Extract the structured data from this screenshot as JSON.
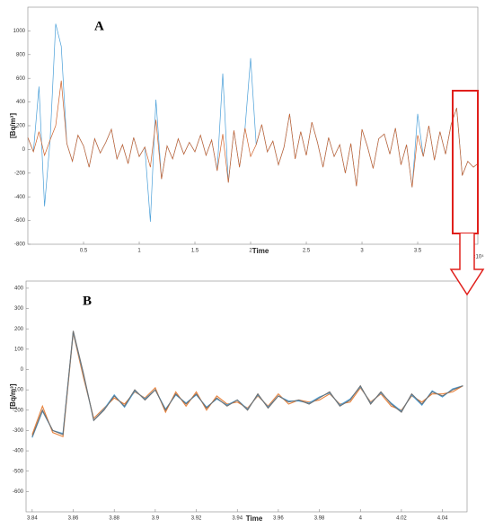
{
  "chart_data": [
    {
      "type": "line",
      "title": "A",
      "xlabel": "Time",
      "ylabel": "[Bq/m³]",
      "x_exponent": "×10⁴",
      "xlim": [
        0,
        4.04
      ],
      "ylim": [
        -800,
        1200
      ],
      "xticks": [
        0.5,
        1,
        1.5,
        2,
        2.5,
        3,
        3.5,
        4
      ],
      "yticks": [
        -800,
        -600,
        -400,
        -200,
        0,
        200,
        400,
        600,
        800,
        1000
      ],
      "x": [
        0,
        0.05,
        0.1,
        0.15,
        0.2,
        0.25,
        0.3,
        0.35,
        0.4,
        0.45,
        0.5,
        0.55,
        0.6,
        0.65,
        0.7,
        0.75,
        0.8,
        0.85,
        0.9,
        0.95,
        1,
        1.05,
        1.1,
        1.15,
        1.2,
        1.25,
        1.3,
        1.35,
        1.4,
        1.45,
        1.5,
        1.55,
        1.6,
        1.65,
        1.7,
        1.75,
        1.8,
        1.85,
        1.9,
        1.95,
        2,
        2.05,
        2.1,
        2.15,
        2.2,
        2.25,
        2.3,
        2.35,
        2.4,
        2.45,
        2.5,
        2.55,
        2.6,
        2.65,
        2.7,
        2.75,
        2.8,
        2.85,
        2.9,
        2.95,
        3,
        3.05,
        3.1,
        3.15,
        3.2,
        3.25,
        3.3,
        3.35,
        3.4,
        3.45,
        3.5,
        3.55,
        3.6,
        3.65,
        3.7,
        3.75,
        3.8,
        3.85,
        3.9,
        3.95,
        4,
        4.04
      ],
      "series": [
        {
          "color": "#4a9fd8",
          "values": [
            100,
            -20,
            530,
            -480,
            80,
            1060,
            870,
            50,
            -100,
            120,
            30,
            -150,
            90,
            -30,
            60,
            170,
            -80,
            40,
            -120,
            100,
            -60,
            20,
            -610,
            420,
            -250,
            30,
            -80,
            90,
            -40,
            60,
            -20,
            120,
            -50,
            80,
            -180,
            640,
            -280,
            160,
            -150,
            180,
            770,
            40,
            210,
            -20,
            70,
            -130,
            20,
            300,
            -80,
            150,
            -50,
            230,
            60,
            -150,
            100,
            -60,
            40,
            -200,
            50,
            -310,
            170,
            20,
            -160,
            90,
            130,
            -40,
            180,
            -130,
            40,
            -320,
            300,
            -60,
            200,
            -90,
            150,
            -40,
            210,
            350,
            -220,
            -100,
            -150,
            -120
          ]
        },
        {
          "color": "#d0622a",
          "values": [
            100,
            -20,
            150,
            -50,
            80,
            200,
            580,
            50,
            -100,
            120,
            30,
            -150,
            90,
            -30,
            60,
            170,
            -80,
            40,
            -120,
            100,
            -60,
            20,
            -150,
            250,
            -250,
            30,
            -80,
            90,
            -40,
            60,
            -20,
            120,
            -50,
            80,
            -180,
            130,
            -280,
            160,
            -150,
            180,
            -60,
            40,
            210,
            -20,
            70,
            -130,
            20,
            300,
            -80,
            150,
            -50,
            230,
            60,
            -150,
            100,
            -60,
            40,
            -200,
            50,
            -310,
            170,
            20,
            -160,
            90,
            130,
            -40,
            180,
            -130,
            40,
            -320,
            120,
            -60,
            200,
            -90,
            150,
            -40,
            210,
            350,
            -220,
            -100,
            -150,
            -120
          ]
        }
      ]
    },
    {
      "type": "line",
      "title": "B",
      "xlabel": "Time",
      "ylabel": "[Bq/m³]",
      "xlim": [
        3.837,
        4.052
      ],
      "ylim": [
        -700,
        435
      ],
      "xticks": [
        3.84,
        3.86,
        3.88,
        3.9,
        3.92,
        3.94,
        3.96,
        3.98,
        4,
        4.02,
        4.04
      ],
      "yticks": [
        -600,
        -500,
        -400,
        -300,
        -200,
        -100,
        0,
        100,
        200,
        300,
        400
      ],
      "x": [
        3.84,
        3.845,
        3.85,
        3.855,
        3.86,
        3.865,
        3.87,
        3.875,
        3.88,
        3.885,
        3.89,
        3.895,
        3.9,
        3.905,
        3.91,
        3.915,
        3.92,
        3.925,
        3.93,
        3.935,
        3.94,
        3.945,
        3.95,
        3.955,
        3.96,
        3.965,
        3.97,
        3.975,
        3.98,
        3.985,
        3.99,
        3.995,
        4,
        4.005,
        4.01,
        4.015,
        4.02,
        4.025,
        4.03,
        4.035,
        4.04,
        4.045,
        4.05
      ],
      "series": [
        {
          "color": "#e8823c",
          "values": [
            -320,
            -180,
            -310,
            -330,
            180,
            -40,
            -240,
            -190,
            -140,
            -170,
            -110,
            -140,
            -90,
            -210,
            -110,
            -180,
            -110,
            -200,
            -130,
            -170,
            -160,
            -190,
            -130,
            -180,
            -120,
            -170,
            -150,
            -160,
            -150,
            -120,
            -170,
            -160,
            -90,
            -160,
            -120,
            -180,
            -200,
            -130,
            -160,
            -120,
            -120,
            -110,
            -80
          ]
        },
        {
          "color": "#4a9fd8",
          "values": [
            -335,
            -205,
            -300,
            -315,
            185,
            -25,
            -250,
            -195,
            -125,
            -185,
            -105,
            -145,
            -100,
            -195,
            -125,
            -165,
            -125,
            -185,
            -145,
            -175,
            -150,
            -195,
            -125,
            -185,
            -130,
            -155,
            -155,
            -165,
            -135,
            -115,
            -175,
            -145,
            -85,
            -165,
            -115,
            -165,
            -205,
            -125,
            -175,
            -105,
            -135,
            -95,
            -80
          ]
        },
        {
          "color": "#707070",
          "values": [
            -330,
            -200,
            -300,
            -320,
            190,
            -20,
            -250,
            -200,
            -130,
            -180,
            -100,
            -150,
            -100,
            -200,
            -120,
            -170,
            -120,
            -190,
            -140,
            -180,
            -150,
            -200,
            -120,
            -190,
            -130,
            -160,
            -150,
            -170,
            -140,
            -110,
            -180,
            -150,
            -80,
            -170,
            -110,
            -170,
            -210,
            -120,
            -170,
            -110,
            -130,
            -100,
            -80
          ]
        }
      ]
    }
  ]
}
